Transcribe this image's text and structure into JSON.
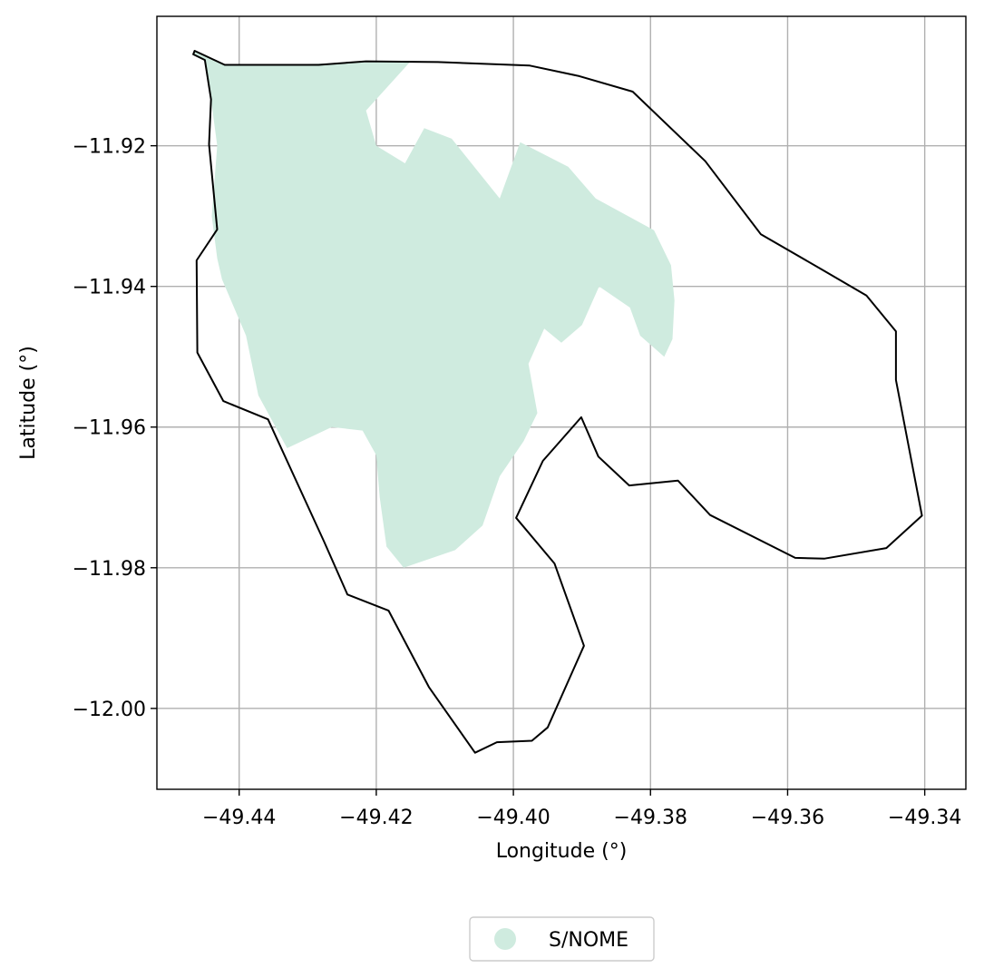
{
  "chart_data": {
    "type": "map",
    "xlabel": "Longitude (°)",
    "ylabel": "Latitude (°)",
    "xlim": [
      -49.452,
      -49.334
    ],
    "ylim": [
      -12.0115,
      -11.9016
    ],
    "x_ticks": [
      -49.44,
      -49.42,
      -49.4,
      -49.38,
      -49.36,
      -49.34
    ],
    "x_tick_labels": [
      "−49.44",
      "−49.42",
      "−49.40",
      "−49.38",
      "−49.36",
      "−49.34"
    ],
    "y_ticks": [
      -11.92,
      -11.94,
      -11.96,
      -11.98,
      -12.0
    ],
    "y_tick_labels": [
      "−11.92",
      "−11.94",
      "−11.96",
      "−11.98",
      "−12.00"
    ],
    "grid": true,
    "legend": {
      "placement": "bottom-center",
      "entries": [
        {
          "label": "S/NOME",
          "color": "#cfebdf"
        }
      ]
    },
    "colors": {
      "fill": "#cfebdf",
      "boundary": "#000000",
      "grid": "#b0b0b0"
    },
    "boundary": [
      [
        -49.4465,
        -11.9065
      ],
      [
        -49.4421,
        -11.9085
      ],
      [
        -49.4284,
        -11.9085
      ],
      [
        -49.4215,
        -11.908
      ],
      [
        -49.411,
        -11.9081
      ],
      [
        -49.3976,
        -11.9086
      ],
      [
        -49.3904,
        -11.9101
      ],
      [
        -49.3826,
        -11.9123
      ],
      [
        -49.372,
        -11.9222
      ],
      [
        -49.3639,
        -11.9326
      ],
      [
        -49.355,
        -11.9376
      ],
      [
        -49.3485,
        -11.9413
      ],
      [
        -49.3442,
        -11.9464
      ],
      [
        -49.3442,
        -11.9533
      ],
      [
        -49.3404,
        -11.9726
      ],
      [
        -49.3456,
        -11.9772
      ],
      [
        -49.3546,
        -11.9787
      ],
      [
        -49.3589,
        -11.9786
      ],
      [
        -49.3713,
        -11.9725
      ],
      [
        -49.376,
        -11.9676
      ],
      [
        -49.3831,
        -11.9683
      ],
      [
        -49.3876,
        -11.9642
      ],
      [
        -49.3901,
        -11.9586
      ],
      [
        -49.3957,
        -11.9648
      ],
      [
        -49.3996,
        -11.9729
      ],
      [
        -49.394,
        -11.9794
      ],
      [
        -49.3897,
        -11.9911
      ],
      [
        -49.395,
        -12.0027
      ],
      [
        -49.3973,
        -12.0046
      ],
      [
        -49.4024,
        -12.0048
      ],
      [
        -49.4056,
        -12.0063
      ],
      [
        -49.4123,
        -11.997
      ],
      [
        -49.4182,
        -11.9861
      ],
      [
        -49.4242,
        -11.9838
      ],
      [
        -49.4276,
        -11.9763
      ],
      [
        -49.4358,
        -11.9589
      ],
      [
        -49.4423,
        -11.9563
      ],
      [
        -49.4461,
        -11.9494
      ],
      [
        -49.4462,
        -11.9363
      ],
      [
        -49.4432,
        -11.9319
      ],
      [
        -49.4444,
        -11.9198
      ],
      [
        -49.4441,
        -11.9134
      ],
      [
        -49.445,
        -11.9078
      ],
      [
        -49.4467,
        -11.907
      ]
    ],
    "polygon": [
      [
        -49.4465,
        -11.9065
      ],
      [
        -49.4421,
        -11.9085
      ],
      [
        -49.435,
        -11.9085
      ],
      [
        -49.415,
        -11.908
      ],
      [
        -49.4215,
        -11.915
      ],
      [
        -49.42,
        -11.92
      ],
      [
        -49.4158,
        -11.9225
      ],
      [
        -49.413,
        -11.9175
      ],
      [
        -49.409,
        -11.919
      ],
      [
        -49.402,
        -11.9275
      ],
      [
        -49.399,
        -11.9195
      ],
      [
        -49.392,
        -11.923
      ],
      [
        -49.388,
        -11.9275
      ],
      [
        -49.3795,
        -11.932
      ],
      [
        -49.377,
        -11.937
      ],
      [
        -49.3765,
        -11.942
      ],
      [
        -49.3768,
        -11.9475
      ],
      [
        -49.378,
        -11.95
      ],
      [
        -49.3815,
        -11.947
      ],
      [
        -49.383,
        -11.943
      ],
      [
        -49.3875,
        -11.94
      ],
      [
        -49.39,
        -11.9455
      ],
      [
        -49.393,
        -11.948
      ],
      [
        -49.3955,
        -11.946
      ],
      [
        -49.3978,
        -11.951
      ],
      [
        -49.3965,
        -11.958
      ],
      [
        -49.3985,
        -11.962
      ],
      [
        -49.402,
        -11.967
      ],
      [
        -49.4045,
        -11.974
      ],
      [
        -49.4085,
        -11.9775
      ],
      [
        -49.416,
        -11.98
      ],
      [
        -49.4185,
        -11.977
      ],
      [
        -49.4195,
        -11.97
      ],
      [
        -49.42,
        -11.964
      ],
      [
        -49.422,
        -11.9605
      ],
      [
        -49.4265,
        -11.96
      ],
      [
        -49.433,
        -11.963
      ],
      [
        -49.4372,
        -11.9555
      ],
      [
        -49.439,
        -11.947
      ],
      [
        -49.4425,
        -11.939
      ],
      [
        -49.4432,
        -11.936
      ],
      [
        -49.444,
        -11.93
      ],
      [
        -49.4432,
        -11.92
      ],
      [
        -49.4441,
        -11.9134
      ],
      [
        -49.445,
        -11.9078
      ],
      [
        -49.4467,
        -11.907
      ]
    ]
  }
}
